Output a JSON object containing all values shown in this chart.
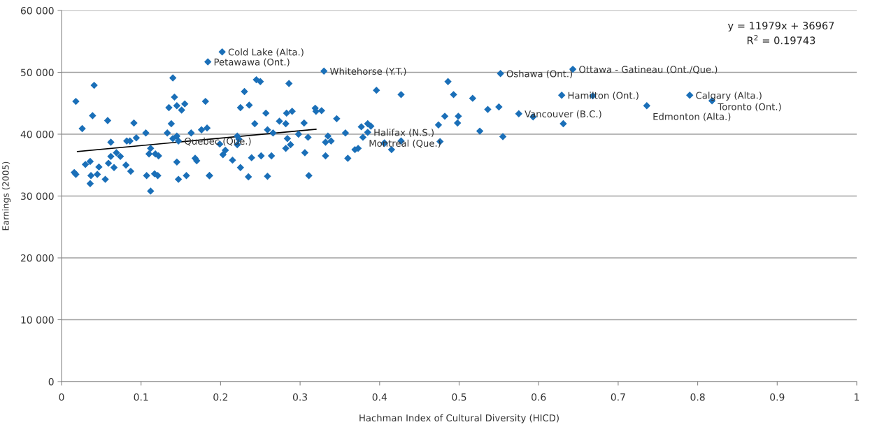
{
  "chart_data": {
    "type": "scatter",
    "xlabel": "Hachman Index of Cultural Diversity (HICD)",
    "ylabel": "Earnings (2005)",
    "xlim": [
      0,
      1
    ],
    "xticks": [
      0,
      0.1,
      0.2,
      0.3,
      0.4,
      0.5,
      0.6,
      0.7,
      0.8,
      0.9,
      1
    ],
    "ylim": [
      0,
      60000
    ],
    "yticks": [
      {
        "value": 0,
        "label": "0"
      },
      {
        "value": 10000,
        "label": "10 000"
      },
      {
        "value": 20000,
        "label": "20 000"
      },
      {
        "value": 30000,
        "label": "30 000"
      },
      {
        "value": 40000,
        "label": "40 000"
      },
      {
        "value": 50000,
        "label": "50 000"
      },
      {
        "value": 60000,
        "label": "60 000"
      }
    ],
    "grid": "y",
    "marker": "diamond",
    "legend": false,
    "series": [
      {
        "color": "#1a6fb8",
        "x": [
          0.018,
          0.041,
          0.026,
          0.039,
          0.058,
          0.091,
          0.062,
          0.082,
          0.086,
          0.094,
          0.106,
          0.062,
          0.069,
          0.074,
          0.03,
          0.036,
          0.059,
          0.047,
          0.066,
          0.081,
          0.087,
          0.016,
          0.018,
          0.037,
          0.045,
          0.055,
          0.036,
          0.112,
          0.112,
          0.11,
          0.118,
          0.122,
          0.107,
          0.117,
          0.121,
          0.133,
          0.135,
          0.14,
          0.142,
          0.145,
          0.151,
          0.155,
          0.138,
          0.14,
          0.145,
          0.147,
          0.163,
          0.176,
          0.183,
          0.181,
          0.184,
          0.145,
          0.147,
          0.157,
          0.168,
          0.17,
          0.186,
          0.202,
          0.33,
          0.245,
          0.25,
          0.286,
          0.23,
          0.225,
          0.236,
          0.257,
          0.283,
          0.29,
          0.243,
          0.274,
          0.282,
          0.305,
          0.319,
          0.32,
          0.327,
          0.346,
          0.377,
          0.259,
          0.266,
          0.298,
          0.31,
          0.284,
          0.335,
          0.357,
          0.221,
          0.223,
          0.221,
          0.199,
          0.332,
          0.339,
          0.282,
          0.288,
          0.206,
          0.203,
          0.215,
          0.239,
          0.251,
          0.264,
          0.306,
          0.332,
          0.36,
          0.369,
          0.373,
          0.225,
          0.235,
          0.259,
          0.311,
          0.186,
          0.396,
          0.427,
          0.486,
          0.493,
          0.517,
          0.536,
          0.55,
          0.552,
          0.575,
          0.593,
          0.629,
          0.631,
          0.643,
          0.482,
          0.499,
          0.474,
          0.498,
          0.526,
          0.555,
          0.476,
          0.385,
          0.389,
          0.385,
          0.379,
          0.406,
          0.406,
          0.415,
          0.427,
          0.79,
          0.818,
          0.736,
          0.668
        ],
        "values": [
          45300,
          47900,
          40900,
          43000,
          42200,
          41800,
          38700,
          38900,
          38900,
          39400,
          40200,
          36400,
          37000,
          36400,
          35100,
          35600,
          35300,
          34700,
          34600,
          35000,
          34000,
          33800,
          33500,
          33300,
          33500,
          32700,
          32000,
          30800,
          37700,
          36800,
          36800,
          36500,
          33300,
          33600,
          33300,
          40200,
          44300,
          49100,
          46000,
          44600,
          43900,
          44900,
          41700,
          39300,
          39700,
          38900,
          40200,
          40700,
          41000,
          45300,
          51700,
          35500,
          32700,
          33300,
          36100,
          35700,
          33300,
          53300,
          50200,
          48800,
          48500,
          48200,
          46900,
          44300,
          44700,
          43400,
          43400,
          43700,
          41700,
          42100,
          41700,
          41800,
          44200,
          43700,
          43800,
          42500,
          41200,
          40700,
          40200,
          40000,
          39500,
          39300,
          39700,
          40200,
          39700,
          39200,
          38300,
          38400,
          38700,
          38900,
          37700,
          38300,
          37400,
          36700,
          35800,
          36200,
          36500,
          36500,
          37000,
          36500,
          36100,
          37500,
          37700,
          34600,
          33100,
          33200,
          33300,
          33300,
          47100,
          46400,
          48500,
          46400,
          45800,
          44000,
          44400,
          49800,
          43300,
          42800,
          46300,
          41700,
          50500,
          42900,
          42900,
          41500,
          41800,
          40500,
          39600,
          38800,
          41700,
          41300,
          40300,
          39500,
          38600,
          38500,
          37500,
          38900,
          46300,
          45400,
          44600,
          46200
        ]
      },
      {
        "type": "line",
        "marker": "none",
        "color": "#000000",
        "x": [
          0.02,
          0.32
        ],
        "values": [
          37200,
          40800
        ]
      }
    ],
    "annotations": [
      "y = 11979x + 36967",
      "R$^{2}$ = 0.19743",
      {
        "text": "Cold Lake (Alta.)",
        "x": 0.202,
        "y": 53300
      },
      {
        "text": "Petawawa (Ont.)",
        "x": 0.184,
        "y": 51700
      },
      {
        "text": "Whitehorse (Y.T.)",
        "x": 0.33,
        "y": 50200
      },
      {
        "text": "Oshawa (Ont.)",
        "x": 0.552,
        "y": 49800
      },
      {
        "text": "Ottawa - Gatineau (Ont./Que.)",
        "x": 0.643,
        "y": 50500
      },
      {
        "text": "Hamilton (Ont.)",
        "x": 0.629,
        "y": 46300
      },
      {
        "text": "Calgary (Alta.)",
        "x": 0.79,
        "y": 46300
      },
      {
        "text": "Toronto (Ont.)",
        "x": 0.818,
        "y": 45400
      },
      {
        "text": "Edmonton (Alta.)",
        "x": 0.736,
        "y": 44600
      },
      {
        "text": "Vancouver (B.C.)",
        "x": 0.575,
        "y": 43300
      },
      {
        "text": "Halifax (N.S.)",
        "x": 0.385,
        "y": 40300
      },
      {
        "text": "Montreal (Que.)",
        "x": 0.379,
        "y": 39500
      },
      {
        "text": "Quebec (Que.)",
        "x": 0.147,
        "y": 38900
      }
    ]
  }
}
